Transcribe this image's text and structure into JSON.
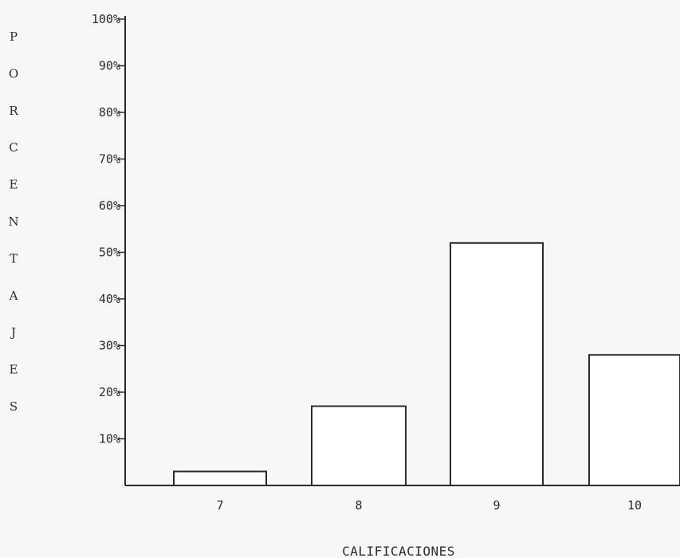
{
  "chart_data": {
    "type": "bar",
    "categories": [
      "7",
      "8",
      "9",
      "10"
    ],
    "values": [
      3,
      17,
      52,
      28
    ],
    "title": "",
    "xlabel": "CALIFICACIONES",
    "ylabel": "PORCENTAJES",
    "ylim": [
      0,
      100
    ],
    "y_ticks": [
      "10%",
      "20%",
      "30%",
      "40%",
      "50%",
      "60%",
      "70%",
      "80%",
      "90%",
      "100%"
    ],
    "grid": false,
    "legend": "none",
    "colors": {
      "bar_fill": "#ffffff",
      "bar_stroke": "#2b2b2b",
      "axis": "#2b2b2b"
    }
  }
}
